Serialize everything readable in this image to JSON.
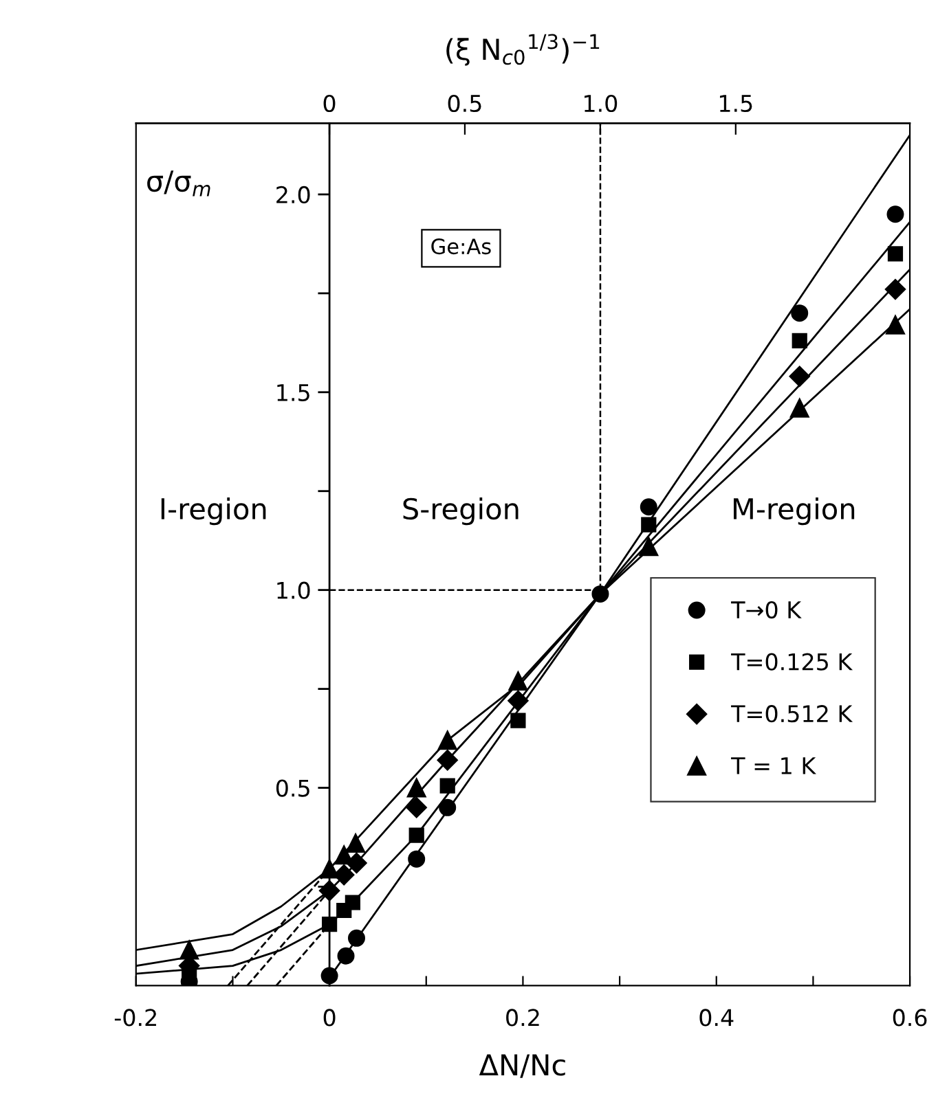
{
  "chart_data": {
    "type": "scatter",
    "xlabel": "ΔN/Nc",
    "ylabel": "σ/σ$_{m}$",
    "x2label": "(ξ N$_{c0}$$^{1/3}$)$^{−1}$",
    "xlim": [
      -0.2,
      0.6
    ],
    "xticks": [
      -0.2,
      {
        "value": -0.1,
        "label": null
      },
      0,
      {
        "value": 0.1,
        "label": null
      },
      0.2,
      {
        "value": 0.3,
        "label": null
      },
      0.4,
      {
        "value": 0.5,
        "label": null
      },
      0.6
    ],
    "x2lim": [
      -0.714,
      2.143
    ],
    "x2ticks": [
      0,
      0.5,
      {
        "value": 1.0,
        "label": "1.0"
      },
      1.5
    ],
    "ylim": [
      0,
      2.18
    ],
    "yticks": [
      {
        "value": 0.25,
        "label": null
      },
      0.5,
      {
        "value": 0.75,
        "label": null
      },
      {
        "value": 1.0,
        "label": "1.0"
      },
      {
        "value": 1.25,
        "label": null
      },
      1.5,
      {
        "value": 1.75,
        "label": null
      },
      {
        "value": 2.0,
        "label": "2.0"
      }
    ],
    "grid": false,
    "legend": "bottom right",
    "ref_lines": [
      {
        "axis": "x",
        "value": 0.28,
        "line_style": "dashed",
        "color": "#000000"
      },
      {
        "axis": "y",
        "value": 1.0,
        "line_style": "dashed",
        "color": "#000000"
      }
    ],
    "annotations": [
      "I-region",
      "S-region",
      "M-region",
      "Ge:As"
    ],
    "series": [
      {
        "name": "T→0 K",
        "marker": "circle",
        "color": "#000000",
        "x": [
          -0.145,
          0,
          0.017,
          0.028,
          0.09,
          0.122,
          0.195,
          0.28,
          0.33,
          0.486,
          0.585
        ],
        "values": [
          0.01,
          0.025,
          0.075,
          0.12,
          0.32,
          0.45,
          null,
          0.99,
          1.21,
          1.7,
          1.95
        ]
      },
      {
        "name": "T=0.125 K",
        "marker": "square",
        "color": "#000000",
        "x": [
          -0.145,
          0,
          0.015,
          0.024,
          0.09,
          0.122,
          0.195,
          0.33,
          0.486,
          0.585
        ],
        "values": [
          0.03,
          0.155,
          0.19,
          0.21,
          0.38,
          0.505,
          0.67,
          1.165,
          1.63,
          1.85
        ]
      },
      {
        "name": "T=0.512 K",
        "marker": "diamond",
        "color": "#000000",
        "x": [
          -0.145,
          0,
          0.015,
          0.028,
          0.09,
          0.122,
          0.195,
          0.486,
          0.585
        ],
        "values": [
          0.05,
          0.24,
          0.28,
          0.31,
          0.45,
          0.57,
          0.72,
          1.54,
          1.76
        ]
      },
      {
        "name": "T = 1 K",
        "marker": "triangle",
        "color": "#000000",
        "x": [
          -0.145,
          0,
          0.015,
          0.027,
          0.09,
          0.122,
          0.195,
          0.33,
          0.486,
          0.585
        ],
        "values": [
          0.09,
          0.295,
          0.33,
          0.36,
          0.5,
          0.62,
          0.77,
          1.11,
          1.46,
          1.67
        ]
      },
      {
        "type": "line",
        "line_style": "solid",
        "color": "#000000",
        "x": [
          0,
          0.28,
          0.6
        ],
        "values": [
          0.02,
          0.99,
          2.15
        ]
      },
      {
        "type": "line",
        "line_style": "solid",
        "color": "#000000",
        "x": [
          -0.2,
          -0.1,
          -0.05,
          0,
          0.024,
          0.09,
          0.28,
          0.6
        ],
        "values": [
          0.03,
          0.05,
          0.09,
          0.155,
          0.21,
          0.38,
          0.99,
          1.93
        ]
      },
      {
        "type": "line",
        "line_style": "solid",
        "color": "#000000",
        "x": [
          -0.2,
          -0.1,
          -0.05,
          0,
          0.028,
          0.122,
          0.28,
          0.6
        ],
        "values": [
          0.05,
          0.09,
          0.15,
          0.24,
          0.31,
          0.57,
          0.99,
          1.81
        ]
      },
      {
        "type": "line",
        "line_style": "solid",
        "color": "#000000",
        "x": [
          -0.2,
          -0.1,
          -0.05,
          0,
          0.122,
          0.2,
          0.28,
          0.6
        ],
        "values": [
          0.09,
          0.13,
          0.2,
          0.295,
          0.62,
          0.77,
          0.99,
          1.71
        ]
      },
      {
        "type": "line",
        "line_style": "dashed",
        "color": "#000000",
        "x": [
          -0.055,
          0
        ],
        "values": [
          0,
          0.155
        ]
      },
      {
        "type": "line",
        "line_style": "dashed",
        "color": "#000000",
        "x": [
          -0.085,
          0
        ],
        "values": [
          0,
          0.24
        ]
      },
      {
        "type": "line",
        "line_style": "dashed",
        "color": "#000000",
        "x": [
          -0.105,
          0
        ],
        "values": [
          0,
          0.295
        ]
      }
    ]
  }
}
